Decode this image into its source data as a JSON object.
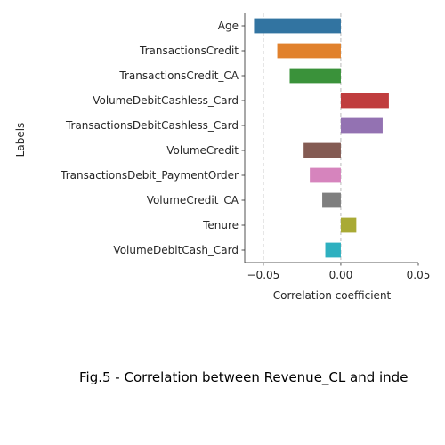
{
  "chart_data": {
    "type": "bar",
    "orientation": "horizontal",
    "categories": [
      "Age",
      "TransactionsCredit",
      "TransactionsCredit_CA",
      "VolumeDebitCashless_Card",
      "TransactionsDebitCashless_Card",
      "VolumeCredit",
      "TransactionsDebit_PaymentOrder",
      "VolumeCredit_CA",
      "Tenure",
      "VolumeDebitCash_Card"
    ],
    "values": [
      -0.056,
      -0.041,
      -0.033,
      0.031,
      0.027,
      -0.024,
      -0.02,
      -0.012,
      0.01,
      -0.01
    ],
    "colors": [
      "#3274a1",
      "#e1812c",
      "#3a923a",
      "#c03d3e",
      "#9372b2",
      "#845b53",
      "#d684bd",
      "#7f7f7f",
      "#a9aa35",
      "#2eb0c0"
    ],
    "xlabel": "Correlation coefficient",
    "ylabel": "Labels",
    "xlim": [
      -0.062,
      0.05
    ],
    "xticks": [
      -0.05,
      0.0,
      0.05
    ],
    "xtick_labels": [
      "−0.05",
      "0.00",
      "0.05"
    ],
    "vertical_reference_lines": [
      -0.05,
      0.0
    ],
    "grid": false,
    "caption": "Fig.5 - Correlation between Revenue_CL and inde"
  }
}
